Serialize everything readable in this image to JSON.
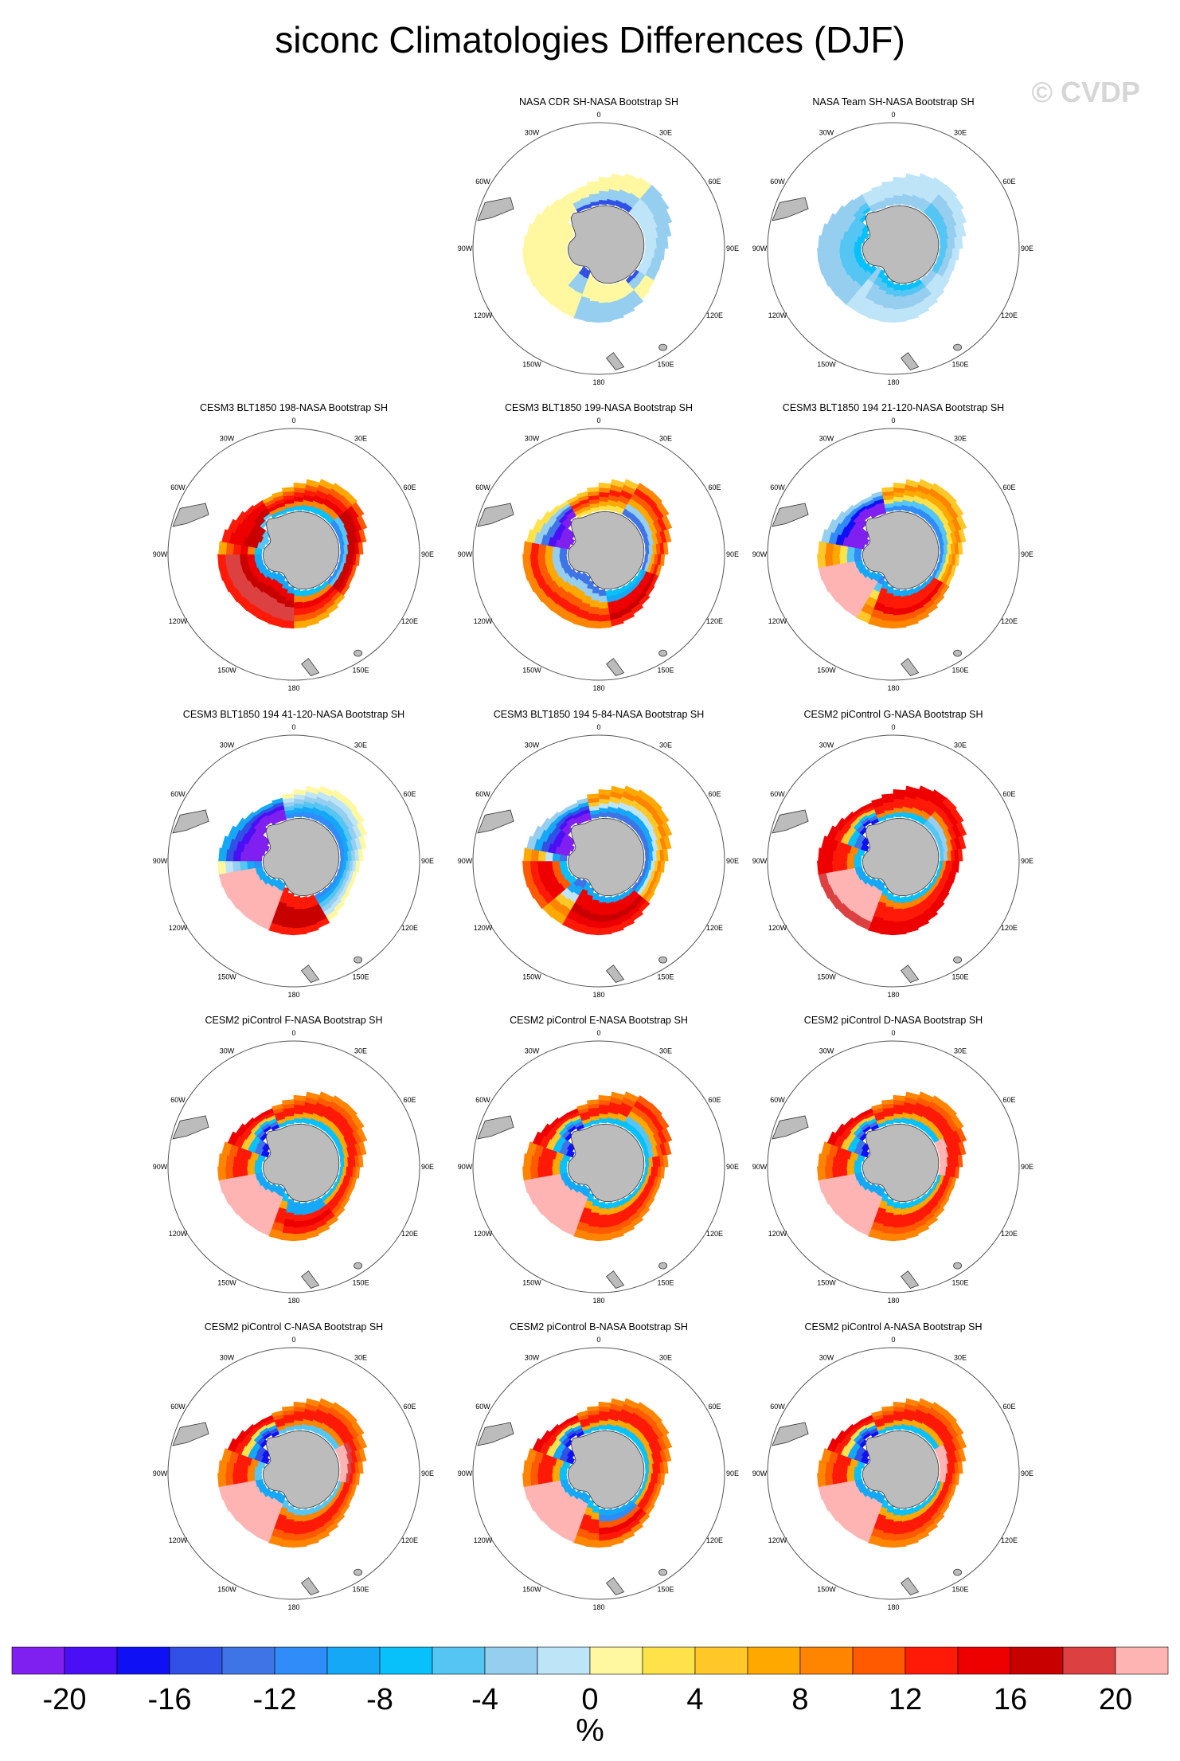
{
  "chart_data": {
    "type": "heatmap",
    "title": "siconc Climatologies Differences (DJF)",
    "watermark": "© CVDP",
    "projection": "south-polar stereographic",
    "longitude_labels": [
      "0",
      "30E",
      "60E",
      "90E",
      "120E",
      "150E",
      "180",
      "150W",
      "120W",
      "90W",
      "60W",
      "30W"
    ],
    "colorbar": {
      "unit": "%",
      "min": -22,
      "max": 22,
      "interval": 2,
      "tick_labels": [
        "-20",
        "-16",
        "-12",
        "-8",
        "-4",
        "0",
        "4",
        "8",
        "12",
        "16",
        "20"
      ],
      "colors": [
        "#8020f0",
        "#4a0ff5",
        "#1010f5",
        "#3050e6",
        "#3e74e6",
        "#2f8cf8",
        "#14a8f7",
        "#08c0fa",
        "#55c6f3",
        "#96cef0",
        "#bee4f8",
        "#fff8a0",
        "#ffe24a",
        "#ffc828",
        "#ffa800",
        "#ff8400",
        "#ff5a00",
        "#ff1a08",
        "#ee0000",
        "#c80000",
        "#dc4040",
        "#ffb4b4"
      ]
    },
    "panels": [
      {
        "title": "NASA CDR SH-NASA Bootstrap SH",
        "ranges": [
          [
            0,
            360,
            0,
            3,
            9,
            9,
            11,
            11,
            11
          ],
          [
            40,
            120,
            6,
            10,
            10,
            10,
            9,
            9,
            9
          ],
          [
            140,
            200,
            4,
            11,
            11,
            11,
            9,
            9,
            9
          ],
          [
            220,
            330,
            3,
            11,
            11,
            11,
            11,
            11,
            11
          ]
        ]
      },
      {
        "title": "NASA Team SH-NASA Bootstrap SH",
        "ranges": [
          [
            0,
            360,
            4,
            9,
            9,
            10,
            10,
            10,
            10
          ],
          [
            40,
            120,
            6,
            8,
            8,
            9,
            9,
            10,
            10
          ],
          [
            220,
            330,
            2,
            7,
            8,
            8,
            9,
            9,
            9
          ],
          [
            140,
            210,
            3,
            7,
            8,
            9,
            9,
            10,
            10
          ]
        ]
      },
      {
        "title": "CESM3 BLT1850 198-NASA Bootstrap SH",
        "ranges": [
          [
            0,
            360,
            4,
            7,
            15,
            18,
            17,
            16,
            14
          ],
          [
            50,
            130,
            6,
            5,
            8,
            19,
            19,
            18,
            16
          ],
          [
            180,
            270,
            7,
            6,
            18,
            19,
            20,
            20,
            17
          ],
          [
            280,
            330,
            4,
            8,
            19,
            19,
            18,
            18,
            17
          ]
        ]
      },
      {
        "title": "CESM3 BLT1850 199-NASA Bootstrap SH",
        "ranges": [
          [
            0,
            360,
            1,
            4,
            9,
            14,
            16,
            17,
            15
          ],
          [
            285,
            340,
            2,
            0,
            0,
            1,
            4,
            9,
            12
          ],
          [
            110,
            170,
            4,
            7,
            6,
            18,
            18,
            19,
            17
          ],
          [
            330,
            30,
            3,
            12,
            14,
            16,
            17,
            15,
            13
          ]
        ]
      },
      {
        "title": "CESM3 BLT1850 194 21-120-NASA Bootstrap SH",
        "ranges": [
          [
            0,
            360,
            3,
            5,
            8,
            12,
            14,
            15,
            13
          ],
          [
            280,
            350,
            2,
            0,
            0,
            0,
            2,
            5,
            9
          ],
          [
            215,
            265,
            5,
            6,
            21,
            21,
            21,
            21,
            21
          ],
          [
            120,
            200,
            5,
            6,
            17,
            17,
            18,
            16,
            15
          ]
        ]
      },
      {
        "title": "CESM3 BLT1850 194 41-120-NASA Bootstrap SH",
        "ranges": [
          [
            0,
            360,
            3,
            5,
            6,
            8,
            9,
            10,
            11
          ],
          [
            270,
            350,
            2,
            0,
            0,
            0,
            1,
            3,
            6
          ],
          [
            200,
            260,
            5,
            6,
            21,
            21,
            21,
            21,
            21
          ],
          [
            150,
            200,
            6,
            17,
            17,
            19,
            19,
            19,
            17
          ]
        ]
      },
      {
        "title": "CESM3 BLT1850 194 5-84-NASA Bootstrap SH",
        "ranges": [
          [
            0,
            360,
            2,
            4,
            6,
            10,
            13,
            15,
            14
          ],
          [
            280,
            350,
            2,
            0,
            0,
            1,
            3,
            6,
            9
          ],
          [
            130,
            210,
            5,
            6,
            18,
            18,
            19,
            18,
            17
          ],
          [
            230,
            270,
            4,
            7,
            16,
            18,
            18,
            17,
            16
          ]
        ]
      },
      {
        "title": "CESM2 piControl G-NASA Bootstrap SH",
        "ranges": [
          [
            0,
            360,
            3,
            7,
            15,
            17,
            17,
            18,
            18
          ],
          [
            290,
            340,
            2,
            2,
            4,
            7,
            13,
            17,
            18
          ],
          [
            200,
            260,
            5,
            6,
            21,
            21,
            21,
            21,
            20
          ],
          [
            40,
            90,
            6,
            8,
            9,
            15,
            17,
            18,
            17
          ]
        ]
      },
      {
        "title": "CESM2 piControl F-NASA Bootstrap SH",
        "ranges": [
          [
            0,
            360,
            3,
            7,
            14,
            17,
            17,
            16,
            15
          ],
          [
            290,
            340,
            2,
            2,
            4,
            7,
            13,
            17,
            18
          ],
          [
            200,
            260,
            5,
            6,
            21,
            21,
            21,
            21,
            21
          ],
          [
            140,
            190,
            5,
            6,
            6,
            17,
            18,
            17,
            15
          ]
        ]
      },
      {
        "title": "CESM2 piControl E-NASA Bootstrap SH",
        "ranges": [
          [
            0,
            360,
            3,
            7,
            14,
            17,
            17,
            16,
            15
          ],
          [
            290,
            340,
            2,
            2,
            4,
            7,
            13,
            17,
            18
          ],
          [
            200,
            260,
            5,
            6,
            21,
            21,
            21,
            21,
            21
          ],
          [
            30,
            80,
            5,
            7,
            8,
            14,
            16,
            17,
            16
          ]
        ]
      },
      {
        "title": "CESM2 piControl D-NASA Bootstrap SH",
        "ranges": [
          [
            0,
            360,
            3,
            7,
            14,
            17,
            17,
            16,
            15
          ],
          [
            290,
            340,
            2,
            2,
            4,
            7,
            13,
            17,
            18
          ],
          [
            200,
            260,
            5,
            6,
            21,
            21,
            21,
            21,
            21
          ],
          [
            60,
            100,
            5,
            21,
            21,
            17,
            17,
            17,
            16
          ]
        ]
      },
      {
        "title": "CESM2 piControl C-NASA Bootstrap SH",
        "ranges": [
          [
            0,
            360,
            3,
            8,
            15,
            17,
            17,
            16,
            15
          ],
          [
            290,
            340,
            2,
            2,
            3,
            6,
            12,
            17,
            18
          ],
          [
            200,
            260,
            5,
            6,
            21,
            21,
            21,
            21,
            21
          ],
          [
            60,
            100,
            4,
            21,
            21,
            20,
            17,
            16,
            15
          ]
        ]
      },
      {
        "title": "CESM2 piControl B-NASA Bootstrap SH",
        "ranges": [
          [
            0,
            360,
            3,
            7,
            14,
            17,
            17,
            16,
            15
          ],
          [
            290,
            340,
            2,
            2,
            3,
            6,
            12,
            17,
            18
          ],
          [
            200,
            260,
            5,
            6,
            21,
            21,
            21,
            21,
            21
          ],
          [
            130,
            180,
            5,
            6,
            5,
            16,
            18,
            17,
            15
          ]
        ]
      },
      {
        "title": "CESM2 piControl A-NASA Bootstrap SH",
        "ranges": [
          [
            0,
            360,
            3,
            7,
            14,
            17,
            17,
            16,
            15
          ],
          [
            290,
            340,
            2,
            2,
            3,
            6,
            12,
            17,
            18
          ],
          [
            200,
            260,
            5,
            6,
            21,
            21,
            21,
            21,
            21
          ],
          [
            60,
            100,
            5,
            21,
            21,
            17,
            17,
            16,
            15
          ]
        ]
      }
    ]
  }
}
